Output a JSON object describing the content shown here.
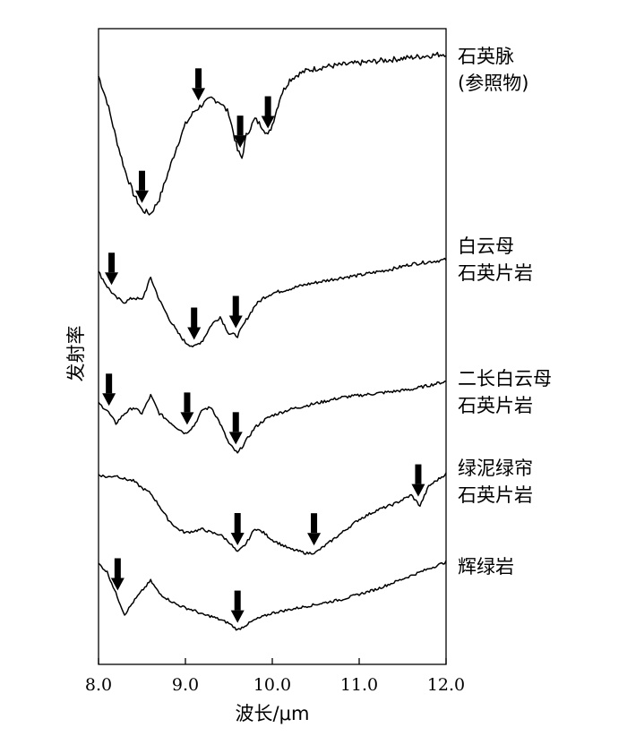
{
  "chart_data": {
    "type": "line",
    "title": "",
    "xlabel": "波长/μm",
    "ylabel": "发射率",
    "xlim": [
      8.0,
      12.0
    ],
    "x_ticks": [
      "8.0",
      "9.0",
      "10.0",
      "11.0",
      "12.0"
    ],
    "y_ticks": [],
    "grid": false,
    "legend": "labels to the right of each curve",
    "arrow_color": "#000000",
    "series": [
      {
        "name_lines": [
          "石英脉",
          "(参照物)"
        ],
        "x": [
          8.0,
          8.1,
          8.2,
          8.3,
          8.4,
          8.5,
          8.6,
          8.7,
          8.8,
          8.9,
          9.0,
          9.1,
          9.2,
          9.3,
          9.4,
          9.5,
          9.6,
          9.65,
          9.7,
          9.8,
          9.9,
          9.95,
          10.0,
          10.1,
          10.2,
          10.3,
          10.4,
          10.5,
          10.6,
          10.7,
          10.8,
          10.9,
          11.0,
          11.1,
          11.2,
          11.3,
          11.4,
          11.5,
          11.6,
          11.7,
          11.8,
          11.9,
          12.0
        ],
        "y": [
          0.88,
          0.74,
          0.55,
          0.38,
          0.25,
          0.16,
          0.14,
          0.22,
          0.36,
          0.5,
          0.62,
          0.69,
          0.73,
          0.76,
          0.74,
          0.68,
          0.48,
          0.44,
          0.56,
          0.65,
          0.6,
          0.56,
          0.62,
          0.78,
          0.86,
          0.89,
          0.91,
          0.92,
          0.93,
          0.935,
          0.94,
          0.945,
          0.95,
          0.955,
          0.96,
          0.965,
          0.97,
          0.975,
          0.98,
          0.985,
          0.99,
          0.995,
          1.0
        ],
        "arrows_x": [
          8.5,
          9.15,
          9.63,
          9.95
        ]
      },
      {
        "name_lines": [
          "白云母",
          "石英片岩"
        ],
        "x": [
          8.0,
          8.1,
          8.2,
          8.3,
          8.4,
          8.5,
          8.6,
          8.7,
          8.8,
          8.9,
          9.0,
          9.1,
          9.2,
          9.3,
          9.4,
          9.5,
          9.6,
          9.7,
          9.8,
          9.9,
          10.0,
          10.2,
          10.4,
          10.6,
          10.8,
          11.0,
          11.2,
          11.4,
          11.6,
          11.8,
          12.0
        ],
        "y": [
          0.85,
          0.72,
          0.62,
          0.58,
          0.62,
          0.6,
          0.8,
          0.6,
          0.45,
          0.32,
          0.22,
          0.18,
          0.24,
          0.38,
          0.45,
          0.3,
          0.28,
          0.42,
          0.55,
          0.62,
          0.66,
          0.7,
          0.74,
          0.77,
          0.8,
          0.82,
          0.85,
          0.88,
          0.92,
          0.94,
          0.96
        ],
        "arrows_x": [
          8.15,
          9.1,
          9.58
        ]
      },
      {
        "name_lines": [
          "二长白云母",
          "石英片岩"
        ],
        "x": [
          8.0,
          8.1,
          8.2,
          8.3,
          8.4,
          8.5,
          8.6,
          8.7,
          8.8,
          8.9,
          9.0,
          9.1,
          9.2,
          9.3,
          9.4,
          9.5,
          9.6,
          9.7,
          9.8,
          9.9,
          10.0,
          10.2,
          10.4,
          10.6,
          10.8,
          11.0,
          11.2,
          11.4,
          11.6,
          11.8,
          12.0
        ],
        "y": [
          0.62,
          0.55,
          0.42,
          0.52,
          0.58,
          0.52,
          0.7,
          0.52,
          0.45,
          0.38,
          0.32,
          0.4,
          0.56,
          0.58,
          0.42,
          0.22,
          0.12,
          0.25,
          0.38,
          0.45,
          0.5,
          0.56,
          0.6,
          0.64,
          0.68,
          0.7,
          0.72,
          0.74,
          0.76,
          0.8,
          0.84
        ],
        "arrows_x": [
          8.12,
          9.02,
          9.58
        ]
      },
      {
        "name_lines": [
          "绿泥绿帘",
          "石英片岩"
        ],
        "x": [
          8.0,
          8.1,
          8.2,
          8.3,
          8.4,
          8.5,
          8.6,
          8.7,
          8.8,
          8.9,
          9.0,
          9.1,
          9.2,
          9.3,
          9.4,
          9.5,
          9.6,
          9.7,
          9.8,
          9.9,
          10.0,
          10.2,
          10.4,
          10.5,
          10.6,
          10.8,
          11.0,
          11.2,
          11.4,
          11.6,
          11.7,
          11.8,
          12.0
        ],
        "y": [
          0.95,
          0.92,
          0.94,
          0.9,
          0.88,
          0.8,
          0.74,
          0.6,
          0.45,
          0.35,
          0.3,
          0.32,
          0.34,
          0.3,
          0.28,
          0.2,
          0.08,
          0.18,
          0.35,
          0.3,
          0.22,
          0.12,
          0.07,
          0.08,
          0.15,
          0.3,
          0.45,
          0.55,
          0.62,
          0.72,
          0.6,
          0.82,
          0.96
        ],
        "arrows_x": [
          9.6,
          10.48,
          11.68
        ]
      },
      {
        "name_lines": [
          "辉绿岩"
        ],
        "x": [
          8.0,
          8.1,
          8.2,
          8.3,
          8.4,
          8.5,
          8.6,
          8.7,
          8.8,
          8.9,
          9.0,
          9.1,
          9.2,
          9.3,
          9.4,
          9.5,
          9.6,
          9.7,
          9.8,
          9.9,
          10.0,
          10.2,
          10.4,
          10.6,
          10.8,
          11.0,
          11.2,
          11.4,
          11.6,
          11.8,
          12.0
        ],
        "y": [
          0.9,
          0.8,
          0.55,
          0.3,
          0.45,
          0.58,
          0.7,
          0.55,
          0.48,
          0.42,
          0.38,
          0.35,
          0.3,
          0.28,
          0.24,
          0.2,
          0.12,
          0.18,
          0.24,
          0.28,
          0.32,
          0.36,
          0.4,
          0.44,
          0.48,
          0.54,
          0.6,
          0.68,
          0.76,
          0.84,
          0.92
        ],
        "arrows_x": [
          8.22,
          9.6
        ]
      }
    ]
  }
}
